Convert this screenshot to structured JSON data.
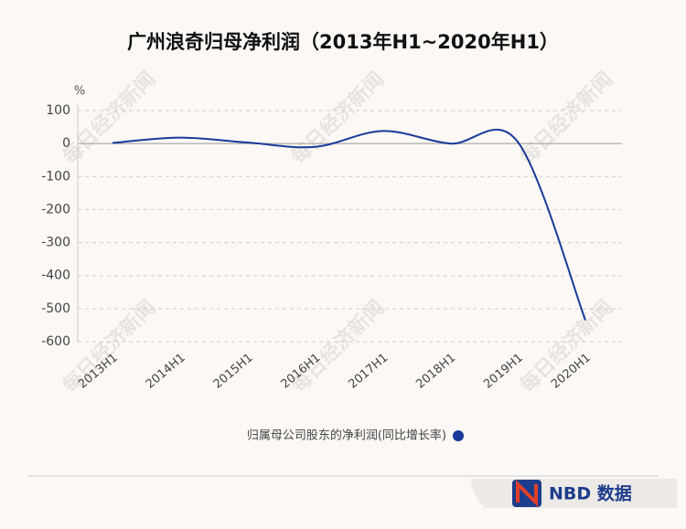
{
  "chart_data": {
    "type": "line",
    "title": "广州浪奇归母净利润（2013年H1~2020年H1）",
    "y_unit": "%",
    "categories": [
      "2013H1",
      "2014H1",
      "2015H1",
      "2016H1",
      "2017H1",
      "2018H1",
      "2019H1",
      "2020H1"
    ],
    "series": [
      {
        "name": "归属母公司股东的净利润(同比增长率)",
        "color": "#1a3a9a",
        "values": [
          2,
          18,
          3,
          -10,
          38,
          0,
          5,
          -535
        ]
      }
    ],
    "ylim": [
      -600,
      100
    ],
    "yticks": [
      -600,
      -500,
      -400,
      -300,
      -200,
      -100,
      0,
      100
    ],
    "grid": true,
    "watermark": "每日经济新闻",
    "logo": "NBD 数据"
  }
}
